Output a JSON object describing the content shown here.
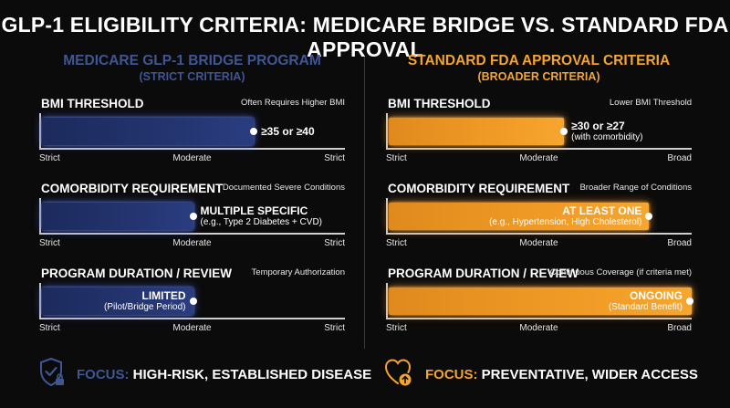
{
  "title": "GLP-1 ELIGIBILITY CRITERIA: MEDICARE BRIDGE VS. STANDARD FDA APPROVAL",
  "colors": {
    "medicare": "#2a3d80",
    "fda": "#f09a26",
    "background": "#0b0b0c"
  },
  "chart_data": {
    "type": "bar",
    "categories": [
      "BMI THRESHOLD",
      "COMORBIDITY REQUIREMENT",
      "PROGRAM DURATION / REVIEW"
    ],
    "panels": [
      {
        "heading": "MEDICARE GLP-1 BRIDGE PROGRAM",
        "subheading": "(STRICT CRITERIA)",
        "scale_labels": [
          "Strict",
          "Moderate",
          "Strict"
        ],
        "criteria": [
          {
            "label": "BMI THRESHOLD",
            "note": "Often Requires Higher BMI",
            "value": 0.7,
            "main": "≥35 or ≥40",
            "sub": "",
            "text_side": "after"
          },
          {
            "label": "COMORBIDITY REQUIREMENT",
            "note": "Documented Severe Conditions",
            "value": 0.5,
            "main": "MULTIPLE SPECIFIC",
            "sub": "(e.g., Type 2 Diabetes + CVD)",
            "text_side": "after"
          },
          {
            "label": "PROGRAM DURATION / REVIEW",
            "note": "Temporary Authorization",
            "value": 0.5,
            "main": "LIMITED",
            "sub": "(Pilot/Bridge Period)",
            "text_side": "before"
          }
        ],
        "focus": {
          "icon": "shield-check-lock-icon",
          "label": "FOCUS:",
          "text": "HIGH-RISK, ESTABLISHED DISEASE"
        }
      },
      {
        "heading": "STANDARD FDA APPROVAL CRITERIA",
        "subheading": "(BROADER CRITERIA)",
        "scale_labels": [
          "Strict",
          "Moderate",
          "Broad"
        ],
        "criteria": [
          {
            "label": "BMI THRESHOLD",
            "note": "Lower BMI Threshold",
            "value": 0.58,
            "main": "≥30 or ≥27",
            "sub": "(with comorbidity)",
            "text_side": "after"
          },
          {
            "label": "COMORBIDITY REQUIREMENT",
            "note": "Broader Range of Conditions",
            "value": 0.86,
            "main": "AT LEAST ONE",
            "sub": "(e.g., Hypertension, High Cholesterol)",
            "text_side": "before"
          },
          {
            "label": "PROGRAM DURATION / REVIEW",
            "note": "Continuous Coverage (if criteria met)",
            "value": 1.0,
            "main": "ONGOING",
            "sub": "(Standard Benefit)",
            "text_side": "before"
          }
        ],
        "focus": {
          "icon": "heart-arrow-up-icon",
          "label": "FOCUS:",
          "text": "PREVENTATIVE, WIDER ACCESS"
        }
      }
    ]
  }
}
